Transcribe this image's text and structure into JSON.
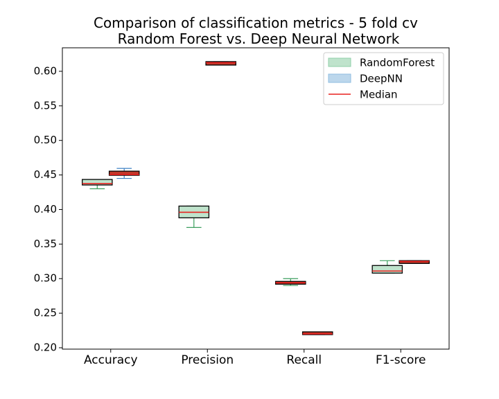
{
  "chart_data": {
    "type": "boxplot",
    "title": "Comparison of classification metrics - 5 fold cv",
    "subtitle": "Random Forest vs. Deep Neural Network",
    "xlabel": "",
    "ylabel": "",
    "categories": [
      "Accuracy",
      "Precision",
      "Recall",
      "F1-score"
    ],
    "ylim": [
      0.198,
      0.634
    ],
    "yticks": [
      0.2,
      0.25,
      0.3,
      0.35,
      0.4,
      0.45,
      0.5,
      0.55,
      0.6
    ],
    "ytick_labels": [
      "0.20",
      "0.25",
      "0.30",
      "0.35",
      "0.40",
      "0.45",
      "0.50",
      "0.55",
      "0.60"
    ],
    "grid": false,
    "legend_position": "top-right",
    "legend": [
      {
        "label": "RandomForest",
        "kind": "patch",
        "color": "#bfe3cc",
        "edge": "#8fcfa8"
      },
      {
        "label": "DeepNN",
        "kind": "patch",
        "color": "#bcd7ec",
        "edge": "#8fbde0"
      },
      {
        "label": "Median",
        "kind": "line",
        "color": "#e8201f"
      }
    ],
    "series": [
      {
        "name": "RandomForest",
        "box_color": "#bfe3cc",
        "whisker_color": "#3b9e5e",
        "boxes": [
          {
            "category": "Accuracy",
            "whislo": 0.43,
            "q1": 0.4355,
            "med": 0.4375,
            "q3": 0.4435,
            "whishi": 0.4435
          },
          {
            "category": "Precision",
            "whislo": 0.374,
            "q1": 0.388,
            "med": 0.396,
            "q3": 0.405,
            "whishi": 0.405
          },
          {
            "category": "Recall",
            "whislo": 0.29,
            "q1": 0.292,
            "med": 0.294,
            "q3": 0.296,
            "whishi": 0.3
          },
          {
            "category": "F1-score",
            "whislo": 0.308,
            "q1": 0.308,
            "med": 0.311,
            "q3": 0.319,
            "whishi": 0.326
          }
        ]
      },
      {
        "name": "DeepNN",
        "box_color": "#bcd7ec",
        "whisker_color": "#3d80c4",
        "boxes": [
          {
            "category": "Accuracy",
            "whislo": 0.445,
            "q1": 0.4495,
            "med": 0.4505,
            "q3": 0.4555,
            "whishi": 0.4595
          },
          {
            "category": "Precision",
            "whislo": 0.609,
            "q1": 0.609,
            "med": 0.6125,
            "q3": 0.614,
            "whishi": 0.614
          },
          {
            "category": "Recall",
            "whislo": 0.219,
            "q1": 0.219,
            "med": 0.22,
            "q3": 0.223,
            "whishi": 0.223
          },
          {
            "category": "F1-score",
            "whislo": 0.322,
            "q1": 0.322,
            "med": 0.325,
            "q3": 0.326,
            "whishi": 0.326
          }
        ]
      }
    ],
    "median_color": "#e8201f",
    "box_edge_color": "#000000",
    "low_spread_box_color": "#c0392b"
  }
}
